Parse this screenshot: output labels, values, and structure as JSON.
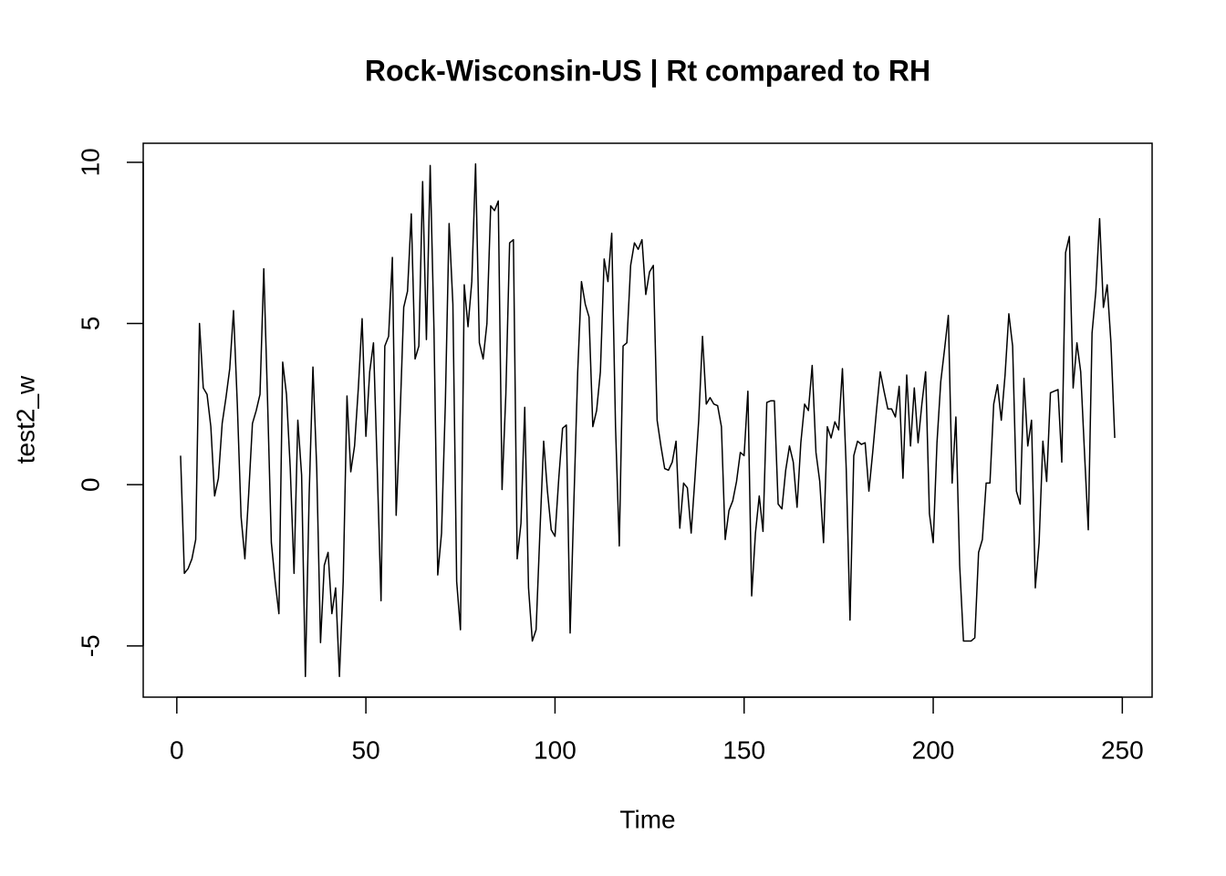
{
  "chart_data": {
    "type": "line",
    "title": "Rock-Wisconsin-US | Rt compared to RH",
    "x_label": "Time",
    "y_label": "test2_w",
    "x": [
      1,
      2,
      3,
      4,
      5,
      6,
      7,
      8,
      9,
      10,
      11,
      12,
      13,
      14,
      15,
      16,
      17,
      18,
      19,
      20,
      21,
      22,
      23,
      24,
      25,
      26,
      27,
      28,
      29,
      30,
      31,
      32,
      33,
      34,
      35,
      36,
      37,
      38,
      39,
      40,
      41,
      42,
      43,
      44,
      45,
      46,
      47,
      48,
      49,
      50,
      51,
      52,
      53,
      54,
      55,
      56,
      57,
      58,
      59,
      60,
      61,
      62,
      63,
      64,
      65,
      66,
      67,
      68,
      69,
      70,
      71,
      72,
      73,
      74,
      75,
      76,
      77,
      78,
      79,
      80,
      81,
      82,
      83,
      84,
      85,
      86,
      87,
      88,
      89,
      90,
      91,
      92,
      93,
      94,
      95,
      96,
      97,
      98,
      99,
      100,
      101,
      102,
      103,
      104,
      105,
      106,
      107,
      108,
      109,
      110,
      111,
      112,
      113,
      114,
      115,
      116,
      117,
      118,
      119,
      120,
      121,
      122,
      123,
      124,
      125,
      126,
      127,
      128,
      129,
      130,
      131,
      132,
      133,
      134,
      135,
      136,
      137,
      138,
      139,
      140,
      141,
      142,
      143,
      144,
      145,
      146,
      147,
      148,
      149,
      150,
      151,
      152,
      153,
      154,
      155,
      156,
      157,
      158,
      159,
      160,
      161,
      162,
      163,
      164,
      165,
      166,
      167,
      168,
      169,
      170,
      171,
      172,
      173,
      174,
      175,
      176,
      177,
      178,
      179,
      180,
      181,
      182,
      183,
      184,
      185,
      186,
      187,
      188,
      189,
      190,
      191,
      192,
      193,
      194,
      195,
      196,
      197,
      198,
      199,
      200,
      201,
      202,
      203,
      204,
      205,
      206,
      207,
      208,
      209,
      210,
      211,
      212,
      213,
      214,
      215,
      216,
      217,
      218,
      219,
      220,
      221,
      222,
      223,
      224,
      225,
      226,
      227,
      228,
      229,
      230,
      231,
      232,
      233,
      234,
      235,
      236,
      237,
      238,
      239,
      240,
      241,
      242,
      243,
      244,
      245,
      246,
      247,
      248
    ],
    "series": [
      {
        "name": "test2_w",
        "color": "#000000",
        "values": [
          0.9,
          -2.75,
          -2.6,
          -2.3,
          -1.7,
          5.0,
          3.0,
          2.8,
          1.8,
          -0.35,
          0.2,
          1.9,
          2.7,
          3.6,
          5.4,
          2.5,
          -1.0,
          -2.3,
          -0.3,
          1.9,
          2.3,
          2.8,
          6.7,
          2.6,
          -1.8,
          -3.0,
          -4.0,
          3.8,
          2.8,
          0.5,
          -2.75,
          2.0,
          0.3,
          -5.95,
          -0.3,
          3.65,
          0.5,
          -4.9,
          -2.5,
          -2.1,
          -4.0,
          -3.2,
          -5.95,
          -3.0,
          2.75,
          0.4,
          1.2,
          3.0,
          5.15,
          1.5,
          3.5,
          4.4,
          0.5,
          -3.6,
          4.3,
          4.6,
          7.05,
          -0.95,
          2.0,
          5.5,
          6.0,
          8.4,
          3.9,
          4.3,
          9.4,
          4.5,
          9.9,
          4.8,
          -2.8,
          -1.5,
          2.5,
          8.1,
          5.6,
          -3.0,
          -4.5,
          6.2,
          4.9,
          6.3,
          9.95,
          4.4,
          3.9,
          5.0,
          8.65,
          8.5,
          8.8,
          -0.15,
          2.8,
          7.5,
          7.6,
          -2.3,
          -1.2,
          2.4,
          -3.2,
          -4.85,
          -4.5,
          -1.5,
          1.35,
          -0.2,
          -1.4,
          -1.6,
          0.2,
          1.75,
          1.85,
          -4.6,
          -0.5,
          3.5,
          6.3,
          5.6,
          5.2,
          1.8,
          2.3,
          3.5,
          7.0,
          6.3,
          7.8,
          1.8,
          -1.9,
          4.3,
          4.4,
          6.8,
          7.5,
          7.3,
          7.6,
          5.9,
          6.6,
          6.8,
          2.0,
          1.2,
          0.5,
          0.45,
          0.7,
          1.35,
          -1.35,
          0.05,
          -0.1,
          -1.5,
          0.2,
          2.0,
          4.6,
          2.5,
          2.7,
          2.5,
          2.45,
          1.8,
          -1.7,
          -0.8,
          -0.5,
          0.1,
          1.0,
          0.9,
          2.9,
          -3.45,
          -1.5,
          -0.35,
          -1.45,
          2.55,
          2.6,
          2.6,
          -0.6,
          -0.75,
          0.45,
          1.2,
          0.7,
          -0.7,
          1.3,
          2.5,
          2.3,
          3.7,
          1.0,
          0.1,
          -1.8,
          1.8,
          1.45,
          1.95,
          1.7,
          3.6,
          0.5,
          -4.2,
          0.9,
          1.35,
          1.25,
          1.3,
          -0.2,
          1.0,
          2.3,
          3.5,
          2.9,
          2.35,
          2.35,
          2.1,
          3.05,
          0.2,
          3.4,
          1.2,
          3.0,
          1.3,
          2.5,
          3.5,
          -0.9,
          -1.8,
          1.3,
          3.2,
          4.2,
          5.25,
          0.05,
          2.1,
          -2.5,
          -4.85,
          -4.85,
          -4.85,
          -4.75,
          -2.1,
          -1.7,
          0.05,
          0.05,
          2.5,
          3.1,
          2.0,
          3.4,
          5.3,
          4.3,
          -0.2,
          -0.6,
          3.3,
          1.2,
          2.0,
          -3.2,
          -1.8,
          1.35,
          0.1,
          2.85,
          2.9,
          2.95,
          0.7,
          7.2,
          7.7,
          3.0,
          4.4,
          3.5,
          1.0,
          -1.4,
          4.7,
          6.0,
          8.25,
          5.5,
          6.2,
          4.4,
          1.45
        ]
      }
    ],
    "xlim": [
      -8.88,
      257.88
    ],
    "xticks": [
      0,
      50,
      100,
      150,
      200,
      250
    ],
    "ylim": [
      -6.59,
      10.59
    ],
    "yticks": [
      -5,
      0,
      5,
      10
    ],
    "grid": false
  }
}
